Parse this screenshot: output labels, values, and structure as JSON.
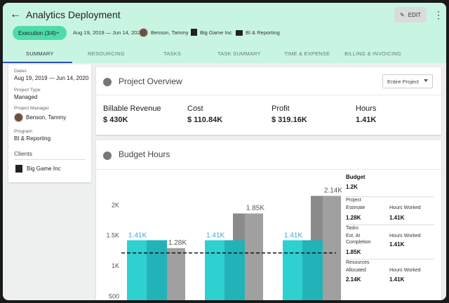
{
  "header": {
    "title": "Analytics Deployment",
    "edit_label": "EDIT",
    "status": "Execution (3/4)",
    "dates": "Aug 19, 2019 — Jun 14, 2020",
    "manager": "Benson, Tammy",
    "client": "Big Game Inc",
    "program": "BI & Reporting"
  },
  "tabs": [
    "SUMMARY",
    "RESOURCING",
    "TASKS",
    "TASK SUMMARY",
    "TIME & EXPENSE",
    "BILLING & INVOICING"
  ],
  "sidebar": {
    "dates_label": "Dates",
    "dates_value": "Aug 19, 2019 — Jun 14, 2020",
    "type_label": "Project Type",
    "type_value": "Managed",
    "pm_label": "Project Manager",
    "pm_value": "Benson, Tammy",
    "program_label": "Program",
    "program_value": "BI & Reporting",
    "clients_label": "Clients",
    "client_value": "Big Game Inc"
  },
  "overview": {
    "title": "Project Overview",
    "filter": "Entire Project",
    "metrics": [
      {
        "label": "Billable Revenue",
        "value": "$ 430K"
      },
      {
        "label": "Cost",
        "value": "$ 110.84K"
      },
      {
        "label": "Profit",
        "value": "$ 319.16K"
      },
      {
        "label": "Hours",
        "value": "1.41K"
      }
    ]
  },
  "budget": {
    "title": "Budget Hours",
    "summary": {
      "budget_label": "Budget",
      "budget_value": "1.2K",
      "project_label": "Project",
      "estimate_label": "Estimate",
      "estimate_value": "1.28K",
      "hours_worked_label": "Hours Worked",
      "hours_worked_1": "1.41K",
      "tasks_label": "Tasks",
      "est_label": "Est. At",
      "completion_label": "Completion",
      "est_value": "1.85K",
      "hours_worked_2": "1.41K",
      "resources_label": "Resources",
      "allocated_label": "Allocated",
      "allocated_value": "2.14K",
      "hours_worked_3": "1.41K"
    }
  },
  "chart_data": {
    "type": "bar",
    "groups": [
      {
        "worked": 1410,
        "worked_label": "1.41K",
        "estimate": 1280,
        "estimate_label": "1.28K"
      },
      {
        "worked": 1410,
        "worked_label": "1.41K",
        "estimate": 1850,
        "estimate_label": "1.85K"
      },
      {
        "worked": 1410,
        "worked_label": "1.41K",
        "estimate": 2140,
        "estimate_label": "2.14K"
      }
    ],
    "budget_line": 1200,
    "y_ticks": [
      {
        "v": 500,
        "label": "500"
      },
      {
        "v": 1000,
        "label": "1K"
      },
      {
        "v": 1500,
        "label": "1.5K"
      },
      {
        "v": 2000,
        "label": "2K"
      }
    ],
    "colors": {
      "worked": "#2fd0d0",
      "worked_shade": "#22b3b8",
      "estimate": "#a0a0a0",
      "estimate_shade": "#8a8a8a",
      "label_worked": "#3aa6d8"
    }
  }
}
